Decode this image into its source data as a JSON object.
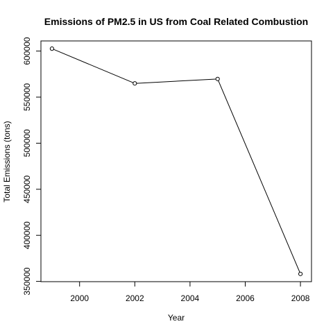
{
  "chart_data": {
    "type": "line",
    "title": "Emissions of PM2.5 in US from Coal Related Combustion",
    "xlabel": "Year",
    "ylabel": "Total Emissions (tons)",
    "x": [
      1999,
      2002,
      2005,
      2008
    ],
    "y": [
      602600,
      564900,
      569700,
      358100
    ],
    "xlim": [
      1998.6,
      2008.4
    ],
    "ylim": [
      349700,
      611000
    ],
    "xticks": [
      2000,
      2002,
      2004,
      2006,
      2008
    ],
    "yticks": [
      350000,
      400000,
      450000,
      500000,
      550000,
      600000
    ],
    "xtick_labels": [
      "2000",
      "2002",
      "2004",
      "2006",
      "2008"
    ],
    "ytick_labels": [
      "350000",
      "400000",
      "450000",
      "500000",
      "550000",
      "600000"
    ],
    "grid": false,
    "legend": "none",
    "line_color": "#000000",
    "marker": "open-circle"
  }
}
